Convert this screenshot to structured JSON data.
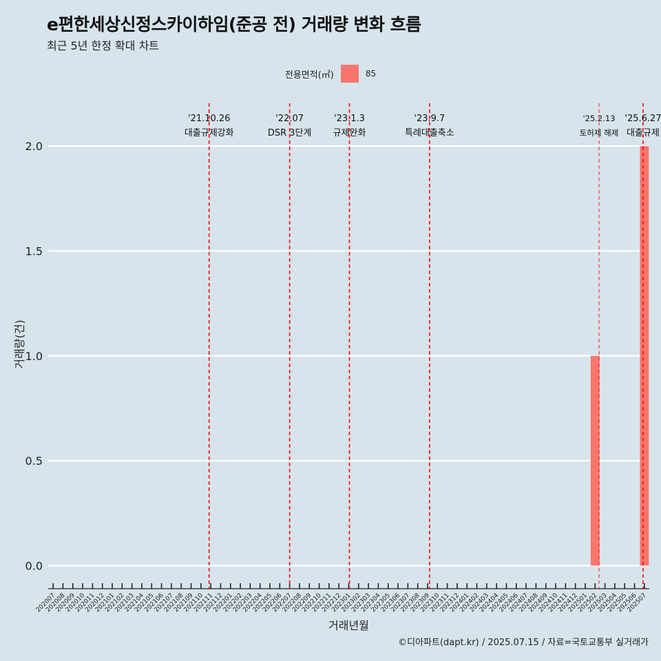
{
  "chart_data": {
    "type": "bar",
    "title": "e편한세상신정스카이하임(준공 전) 거래량 변화 흐름",
    "subtitle": "최근 5년 한정 확대 차트",
    "xlabel": "거래년월",
    "ylabel": "거래량(건)",
    "ylim": [
      -0.11,
      2.22
    ],
    "yticks": [
      0.0,
      0.5,
      1.0,
      1.5,
      2.0
    ],
    "ytick_labels": [
      "0.0",
      "0.5",
      "1.0",
      "1.5",
      "2.0"
    ],
    "grid": true,
    "legend": {
      "title": "전용면적(㎡)",
      "position": "top",
      "items": [
        {
          "label": "85",
          "color": "#f8766d"
        }
      ]
    },
    "categories": [
      "202007",
      "202008",
      "202009",
      "202010",
      "202011",
      "202012",
      "202101",
      "202102",
      "202103",
      "202104",
      "202105",
      "202106",
      "202107",
      "202108",
      "202109",
      "202110",
      "202111",
      "202112",
      "202201",
      "202202",
      "202203",
      "202204",
      "202205",
      "202206",
      "202207",
      "202208",
      "202209",
      "202210",
      "202211",
      "202212",
      "202301",
      "202302",
      "202303",
      "202304",
      "202305",
      "202306",
      "202307",
      "202308",
      "202309",
      "202310",
      "202311",
      "202312",
      "202401",
      "202402",
      "202403",
      "202404",
      "202405",
      "202406",
      "202407",
      "202408",
      "202409",
      "202410",
      "202411",
      "202412",
      "202501",
      "202502",
      "202503",
      "202504",
      "202505",
      "202506",
      "202507"
    ],
    "series": [
      {
        "name": "85",
        "color": "#f8766d",
        "values": [
          0,
          0,
          0,
          0,
          0,
          0,
          0,
          0,
          0,
          0,
          0,
          0,
          0,
          0,
          0,
          0,
          0,
          0,
          0,
          0,
          0,
          0,
          0,
          0,
          0,
          0,
          0,
          0,
          0,
          0,
          0,
          0,
          0,
          0,
          0,
          0,
          0,
          0,
          0,
          0,
          0,
          0,
          0,
          0,
          0,
          0,
          0,
          0,
          0,
          0,
          0,
          0,
          0,
          0,
          0,
          1,
          0,
          0,
          0,
          0,
          2
        ]
      }
    ],
    "annotations": [
      {
        "date_line1": "'21.10.26",
        "date_line2": "대출규제강화",
        "category": "202110",
        "offset": 0.83,
        "style": "thick"
      },
      {
        "date_line1": "'22.07",
        "date_line2": "DSR 3단계",
        "category": "202207",
        "offset": 0.0,
        "style": "thick"
      },
      {
        "date_line1": "'23.1.3",
        "date_line2": "규제완화",
        "category": "202301",
        "offset": 0.07,
        "style": "thick"
      },
      {
        "date_line1": "'23.9.7",
        "date_line2": "특례대출축소",
        "category": "202309",
        "offset": 0.2,
        "style": "thick"
      },
      {
        "date_line1": "'25.2.13",
        "date_line2": "토허제 해제",
        "category": "202502",
        "offset": 0.4,
        "style": "thin"
      },
      {
        "date_line1": "'25.6.27",
        "date_line2": "대출규제",
        "category": "202506",
        "offset": 0.87,
        "style": "thick"
      }
    ],
    "caption": "©디아파트(dapt.kr) / 2025.07.15 / 자료=국토교통부 실거래가"
  }
}
